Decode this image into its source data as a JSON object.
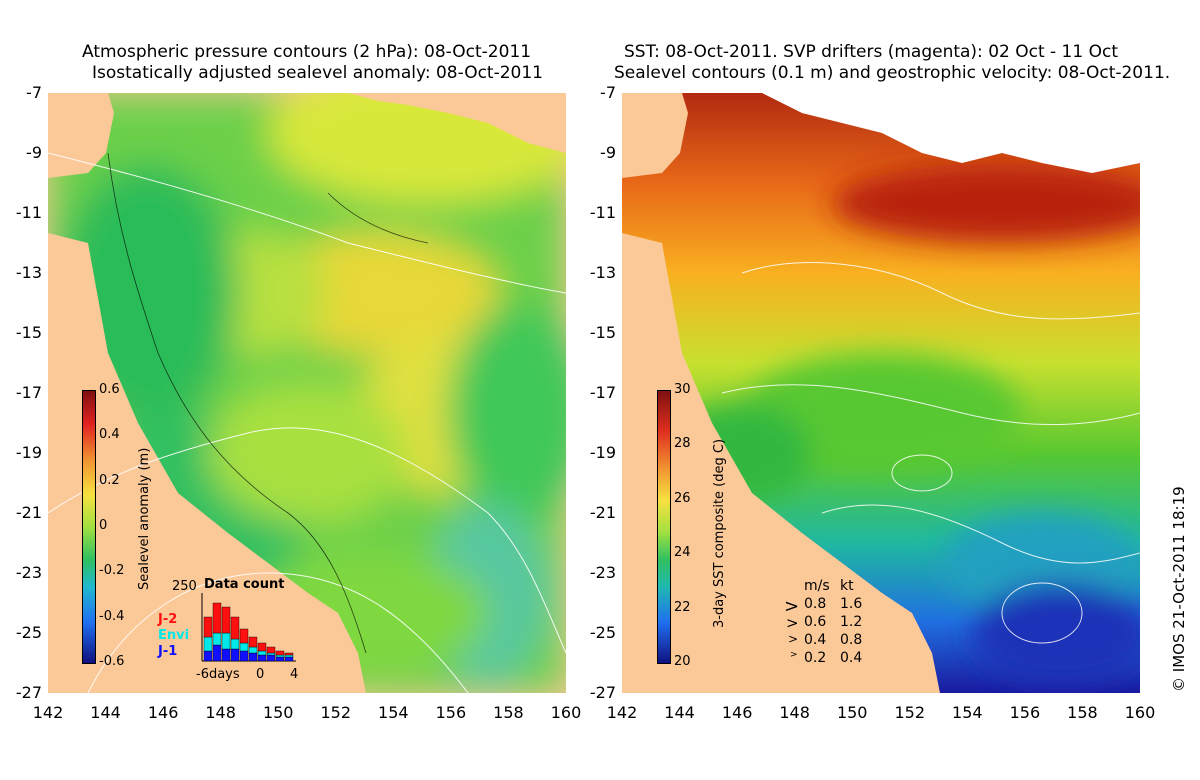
{
  "left_panel": {
    "title_line1": "Atmospheric pressure contours (2 hPa): 08-Oct-2011",
    "title_line2": "Isostatically adjusted sealevel anomaly: 08-Oct-2011",
    "colorbar": {
      "label": "Sealevel anomaly (m)",
      "ticks": [
        "0.6",
        "0.4",
        "0.2",
        "0",
        "-0.2",
        "-0.4",
        "-0.6"
      ]
    },
    "data_count": {
      "title": "Data count",
      "max_label": "250",
      "series": [
        "J-2",
        "Envi",
        "J-1"
      ],
      "series_colors": [
        "#ff1010",
        "#00e8e8",
        "#1010ff"
      ],
      "x_labels": [
        "-6days",
        "0",
        "4"
      ]
    }
  },
  "right_panel": {
    "title_line1": "SST: 08-Oct-2011. SVP drifters (magenta): 02 Oct - 11 Oct",
    "title_line2": "Sealevel contours (0.1 m) and geostrophic velocity: 08-Oct-2011.",
    "colorbar": {
      "label": "3-day SST composite (deg C)",
      "ticks": [
        "30",
        "28",
        "26",
        "24",
        "22",
        "20"
      ]
    },
    "velocity_legend": {
      "header_ms": "m/s",
      "header_kt": "kt",
      "rows": [
        {
          "ms": "0.8",
          "kt": "1.6"
        },
        {
          "ms": "0.6",
          "kt": "1.2"
        },
        {
          "ms": "0.4",
          "kt": "0.8"
        },
        {
          "ms": "0.2",
          "kt": "0.4"
        }
      ]
    }
  },
  "y_ticks": [
    "-7",
    "-9",
    "-11",
    "-13",
    "-15",
    "-17",
    "-19",
    "-21",
    "-23",
    "-25",
    "-27"
  ],
  "x_ticks": [
    "142",
    "144",
    "146",
    "148",
    "150",
    "152",
    "154",
    "156",
    "158",
    "160"
  ],
  "credit": "© IMOS 21-Oct-2011 18:19",
  "colors": {
    "land": "#fbc898",
    "cloud": "#ffffff"
  }
}
